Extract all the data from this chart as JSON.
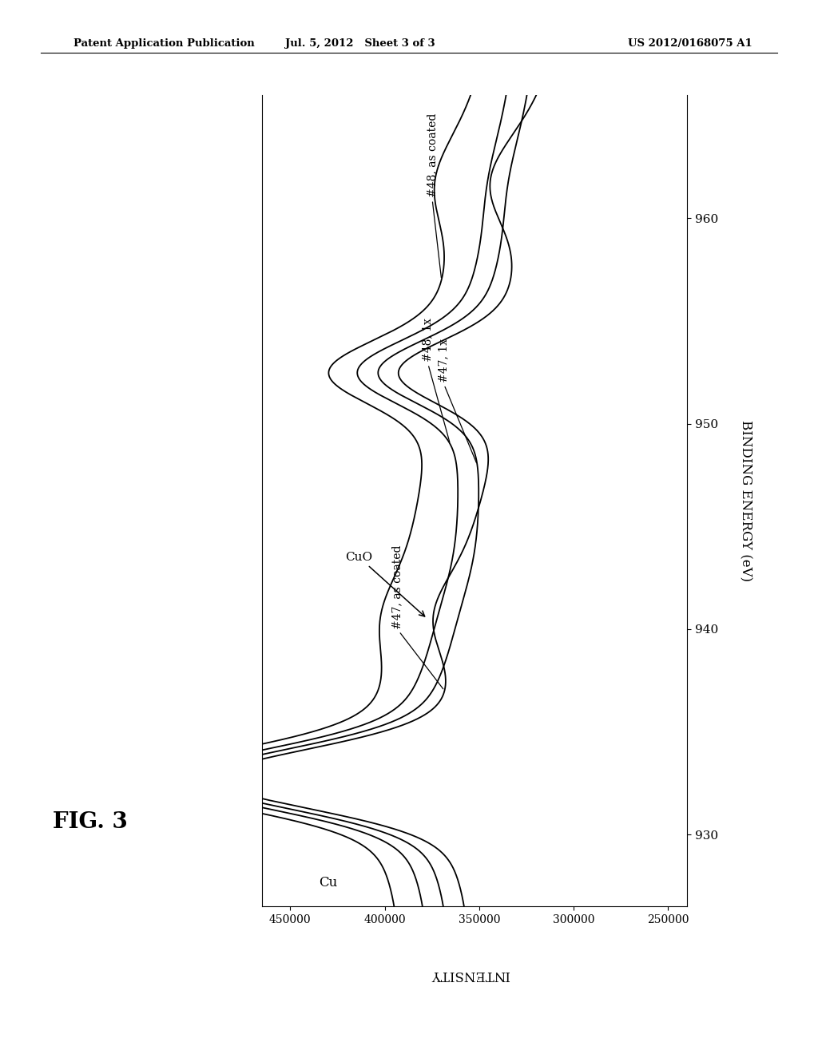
{
  "header_left": "Patent Application Publication",
  "header_center": "Jul. 5, 2012   Sheet 3 of 3",
  "header_right": "US 2012/0168075 A1",
  "fig_label": "FIG. 3",
  "ylabel_rotated": "BINDING ENERGY (eV)",
  "xlabel_updown": "INTENSITY",
  "be_ticks": [
    930,
    940,
    950,
    960
  ],
  "intensity_ticks": [
    450000,
    400000,
    350000,
    300000,
    250000
  ],
  "curve_labels": [
    "#47, as coated",
    "#47, 1x",
    "#48, 1x",
    "#48, as coated"
  ],
  "background": "#ffffff",
  "linecolor": "#000000",
  "linewidth": 1.3
}
